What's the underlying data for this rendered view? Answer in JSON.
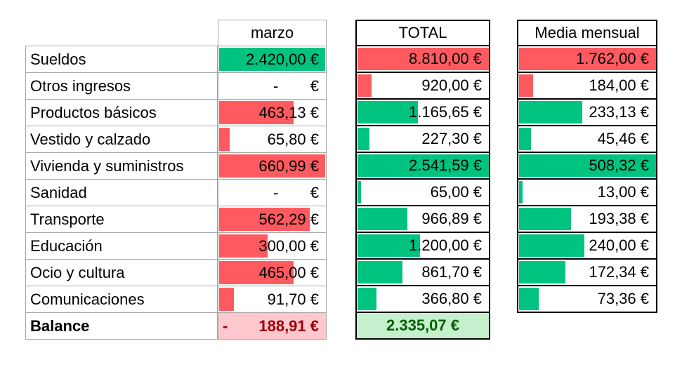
{
  "colors": {
    "red_bar": "#ff5a5f",
    "green_bar": "#00c37f",
    "balance_neg_bg": "#ffc7ce",
    "balance_neg_text": "#9c0006",
    "balance_pos_bg": "#c6efce",
    "balance_pos_text": "#006100"
  },
  "headers": {
    "marzo": "marzo",
    "total": "TOTAL",
    "media": "Media mensual"
  },
  "rows": [
    {
      "label": "Sueldos",
      "marzo": "2.420,00 €",
      "total": "8.810,00 €",
      "media": "1.762,00 €",
      "marzo_fill": 1.0,
      "marzo_color": "green",
      "total_fill": 1.0,
      "total_color": "red",
      "media_fill": 1.0,
      "media_color": "red"
    },
    {
      "label": "Otros ingresos",
      "marzo_dash": "-",
      "marzo_eur": "€",
      "total": "920,00 €",
      "media": "184,00 €",
      "marzo_fill": 0,
      "marzo_color": "green",
      "total_fill": 0.104,
      "total_color": "red",
      "media_fill": 0.104,
      "media_color": "red"
    },
    {
      "label": "Productos básicos",
      "marzo": "463,13 €",
      "total": "1.165,65 €",
      "media": "233,13 €",
      "marzo_fill": 0.7,
      "marzo_color": "red",
      "total_fill": 0.459,
      "total_color": "green",
      "media_fill": 0.459,
      "media_color": "green"
    },
    {
      "label": "Vestido y calzado",
      "marzo": "65,80 €",
      "total": "227,30 €",
      "media": "45,46 €",
      "marzo_fill": 0.1,
      "marzo_color": "red",
      "total_fill": 0.089,
      "total_color": "green",
      "media_fill": 0.089,
      "media_color": "green"
    },
    {
      "label": "Vivienda y suministros",
      "marzo": "660,99 €",
      "total": "2.541,59 €",
      "media": "508,32 €",
      "marzo_fill": 1.0,
      "marzo_color": "red",
      "total_fill": 1.0,
      "total_color": "green",
      "media_fill": 1.0,
      "media_color": "green"
    },
    {
      "label": "Sanidad",
      "marzo_dash": "-",
      "marzo_eur": "€",
      "total": "65,00 €",
      "media": "13,00 €",
      "marzo_fill": 0,
      "marzo_color": "red",
      "total_fill": 0.026,
      "total_color": "green",
      "media_fill": 0.026,
      "media_color": "green"
    },
    {
      "label": "Transporte",
      "marzo": "562,29 €",
      "total": "966,89 €",
      "media": "193,38 €",
      "marzo_fill": 0.851,
      "marzo_color": "red",
      "total_fill": 0.38,
      "total_color": "green",
      "media_fill": 0.38,
      "media_color": "green"
    },
    {
      "label": "Educación",
      "marzo": "300,00 €",
      "total": "1.200,00 €",
      "media": "240,00 €",
      "marzo_fill": 0.454,
      "marzo_color": "red",
      "total_fill": 0.472,
      "total_color": "green",
      "media_fill": 0.472,
      "media_color": "green"
    },
    {
      "label": "Ocio y cultura",
      "marzo": "465,00 €",
      "total": "861,70 €",
      "media": "172,34 €",
      "marzo_fill": 0.703,
      "marzo_color": "red",
      "total_fill": 0.339,
      "total_color": "green",
      "media_fill": 0.339,
      "media_color": "green"
    },
    {
      "label": "Comunicaciones",
      "marzo": "91,70 €",
      "total": "366,80 €",
      "media": "73,36 €",
      "marzo_fill": 0.139,
      "marzo_color": "red",
      "total_fill": 0.144,
      "total_color": "green",
      "media_fill": 0.144,
      "media_color": "green"
    }
  ],
  "balance": {
    "label": "Balance",
    "marzo_sign": "-",
    "marzo": "188,91 €",
    "total": "2.335,07 €"
  }
}
